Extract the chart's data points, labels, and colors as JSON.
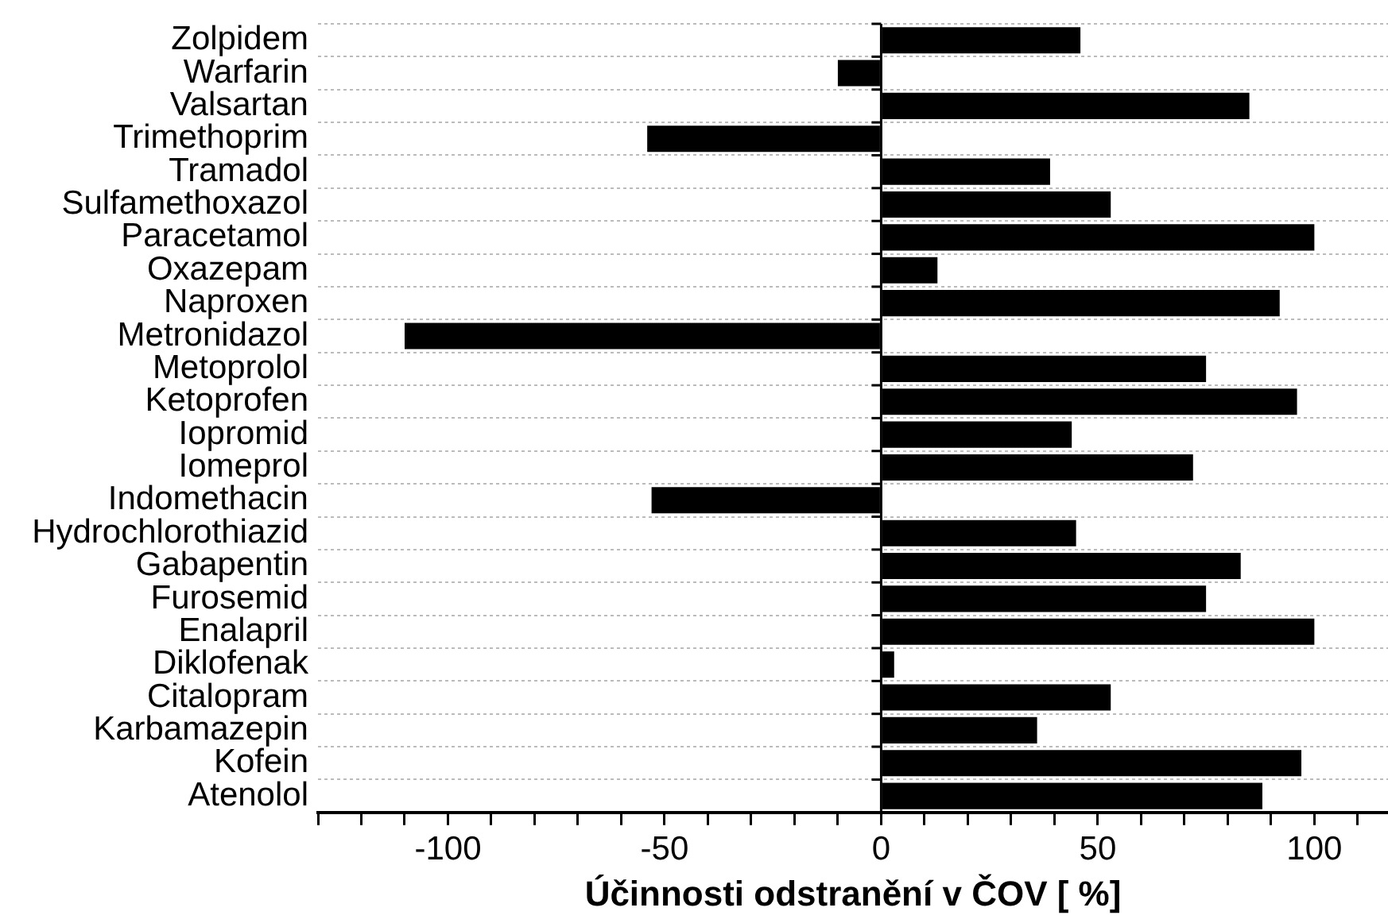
{
  "chart_data": {
    "type": "bar",
    "orientation": "horizontal",
    "xlabel": "Účinnosti odstranění v ČOV [ %]",
    "categories": [
      "Zolpidem",
      "Warfarin",
      "Valsartan",
      "Trimethoprim",
      "Tramadol",
      "Sulfamethoxazol",
      "Paracetamol",
      "Oxazepam",
      "Naproxen",
      "Metronidazol",
      "Metoprolol",
      "Ketoprofen",
      "Iopromid",
      "Iomeprol",
      "Indomethacin",
      "Hydrochlorothiazid",
      "Gabapentin",
      "Furosemid",
      "Enalapril",
      "Diklofenak",
      "Citalopram",
      "Karbamazepin",
      "Kofein",
      "Atenolol"
    ],
    "values": [
      46,
      -10,
      85,
      -54,
      39,
      53,
      100,
      13,
      92,
      -110,
      75,
      96,
      44,
      72,
      -53,
      45,
      83,
      75,
      100,
      3,
      53,
      36,
      97,
      88
    ],
    "color": "#000000",
    "xlim": [
      -130,
      117
    ],
    "xticks": [
      {
        "value": -130,
        "label": null
      },
      {
        "value": -120,
        "label": null
      },
      {
        "value": -110,
        "label": null
      },
      -100,
      {
        "value": -90,
        "label": null
      },
      {
        "value": -80,
        "label": null
      },
      {
        "value": -70,
        "label": null
      },
      {
        "value": -60,
        "label": null
      },
      -50,
      {
        "value": -40,
        "label": null
      },
      {
        "value": -30,
        "label": null
      },
      {
        "value": -20,
        "label": null
      },
      {
        "value": -10,
        "label": null
      },
      0,
      {
        "value": 10,
        "label": null
      },
      {
        "value": 20,
        "label": null
      },
      {
        "value": 30,
        "label": null
      },
      {
        "value": 40,
        "label": null
      },
      50,
      {
        "value": 60,
        "label": null
      },
      {
        "value": 70,
        "label": null
      },
      {
        "value": 80,
        "label": null
      },
      {
        "value": 90,
        "label": null
      },
      100,
      {
        "value": 110,
        "label": null
      }
    ],
    "grid": "y"
  }
}
